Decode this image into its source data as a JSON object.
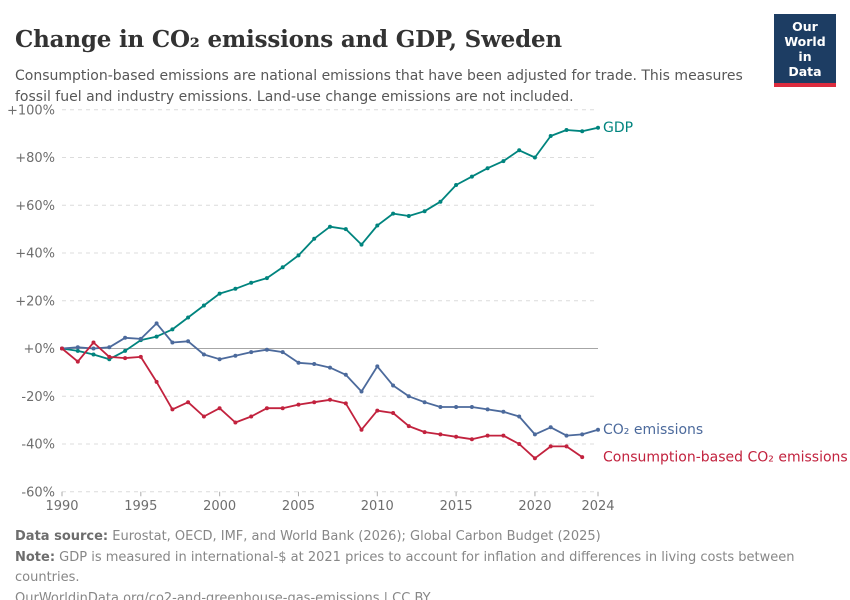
{
  "header": {
    "title": "Change in CO₂ emissions and GDP, Sweden",
    "subtitle": "Consumption-based emissions are national emissions that have been adjusted for trade. This measures fossil fuel and industry emissions. Land-use change emissions are not included.",
    "logo": {
      "line1": "Our World",
      "line2": "in Data",
      "bg_color": "#1d3d63",
      "accent_color": "#dc2c3e"
    }
  },
  "chart_data": {
    "type": "line",
    "title": "Change in CO₂ emissions and GDP, Sweden",
    "xlabel": "",
    "ylabel": "",
    "xlim": [
      1990,
      2024
    ],
    "ylim": [
      -60,
      100
    ],
    "grid": "horizontal dashed, solid line at 0%",
    "legend_position": "end-of-line labels",
    "x_start": 1990,
    "x": [
      1990,
      1991,
      1992,
      1993,
      1994,
      1995,
      1996,
      1997,
      1998,
      1999,
      2000,
      2001,
      2002,
      2003,
      2004,
      2005,
      2006,
      2007,
      2008,
      2009,
      2010,
      2011,
      2012,
      2013,
      2014,
      2015,
      2016,
      2017,
      2018,
      2019,
      2020,
      2021,
      2022,
      2023,
      2024
    ],
    "yticks": [
      {
        "value": 100,
        "label": "+100%"
      },
      {
        "value": 80,
        "label": "+80%"
      },
      {
        "value": 60,
        "label": "+60%"
      },
      {
        "value": 40,
        "label": "+40%"
      },
      {
        "value": 20,
        "label": "+20%"
      },
      {
        "value": 0,
        "label": "+0%"
      },
      {
        "value": -20,
        "label": "-20%"
      },
      {
        "value": -40,
        "label": "-40%"
      },
      {
        "value": -60,
        "label": "-60%"
      }
    ],
    "xticks": [
      {
        "value": 1990,
        "label": "1990"
      },
      {
        "value": 1995,
        "label": "1995"
      },
      {
        "value": 2000,
        "label": "2000"
      },
      {
        "value": 2005,
        "label": "2005"
      },
      {
        "value": 2010,
        "label": "2010"
      },
      {
        "value": 2015,
        "label": "2015"
      },
      {
        "value": 2020,
        "label": "2020"
      },
      {
        "value": 2024,
        "label": "2024"
      }
    ],
    "series": [
      {
        "name": "GDP",
        "color": "#00847e",
        "unit": "%",
        "values": [
          0,
          -1,
          -2.5,
          -4.5,
          -1,
          3.5,
          5,
          8,
          13,
          18,
          23,
          25,
          27.5,
          29.5,
          34,
          39,
          46,
          51,
          50,
          43.5,
          51.5,
          56.5,
          55.5,
          57.5,
          61.5,
          68.5,
          72,
          75.5,
          78.5,
          83,
          80,
          89,
          91.5,
          91,
          92.5
        ]
      },
      {
        "name": "CO₂ emissions",
        "color": "#4c6a9c",
        "unit": "%",
        "values": [
          0,
          0.5,
          0,
          0.5,
          4.5,
          4,
          10.5,
          2.5,
          3,
          -2.5,
          -4.5,
          -3,
          -1.5,
          -0.5,
          -1.5,
          -6,
          -6.5,
          -8,
          -11,
          -18,
          -7.5,
          -15.5,
          -20,
          -22.5,
          -24.5,
          -24.5,
          -24.5,
          -25.5,
          -26.5,
          -28.5,
          -36,
          -33,
          -36.5,
          -36,
          -34
        ]
      },
      {
        "name": "Consumption-based CO₂ emissions",
        "color": "#c2223e",
        "unit": "%",
        "values": [
          0,
          -5.5,
          2.5,
          -3.5,
          -4,
          -3.5,
          -14,
          -25.5,
          -22.5,
          -28.5,
          -25,
          -31,
          -28.5,
          -25,
          -25,
          -23.5,
          -22.5,
          -21.5,
          -23,
          -34,
          -26,
          -27,
          -32.5,
          -35,
          -36,
          -37,
          -38,
          -36.5,
          -36.5,
          -40,
          -46,
          -41,
          -41,
          -45.5
        ]
      }
    ]
  },
  "footer": {
    "sources_label": "Data source:",
    "sources_text": " Eurostat, OECD, IMF, and World Bank (2026); Global Carbon Budget (2025)",
    "note_label": "Note:",
    "note_text": " GDP is measured in international-$ at 2021 prices to account for inflation and differences in living costs between countries.",
    "url": "OurWorldinData.org/co2-and-greenhouse-gas-emissions",
    "license": " | CC BY"
  },
  "style": {
    "grid_color": "#dcdcdc",
    "zero_line_color": "#a6a6a6",
    "tick_color": "#ababab",
    "axis_label_color": "#6e6e6e"
  }
}
